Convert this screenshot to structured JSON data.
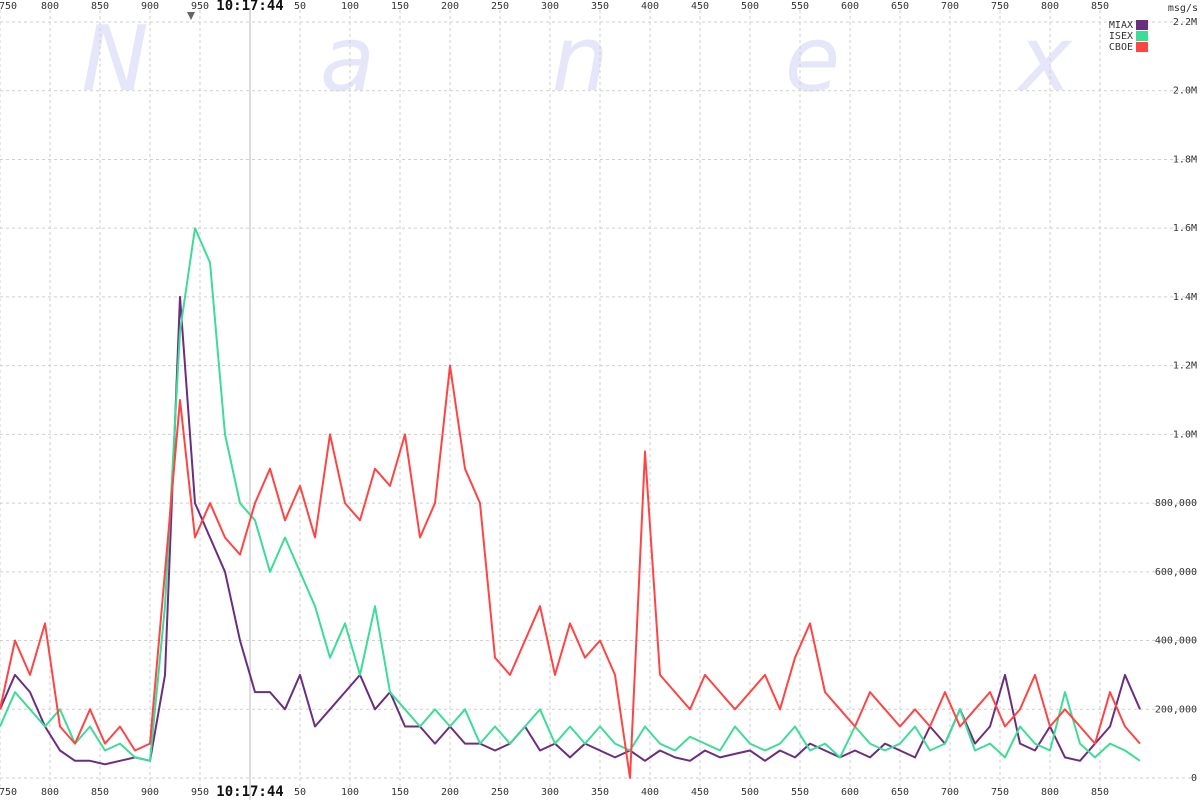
{
  "chart_data": {
    "type": "line",
    "watermark": [
      "N",
      "a",
      "n",
      "e",
      "x"
    ],
    "unit_label": "msg/s",
    "legend": "top-right",
    "grid": true,
    "xlim": [
      -250,
      950
    ],
    "xticks": [
      {
        "value": -250,
        "label": "750"
      },
      {
        "value": -200,
        "label": "800"
      },
      {
        "value": -150,
        "label": "850"
      },
      {
        "value": -100,
        "label": "900"
      },
      {
        "value": -50,
        "label": "950"
      },
      {
        "value": 0,
        "label": "10:17:44"
      },
      50,
      100,
      150,
      200,
      250,
      300,
      350,
      400,
      450,
      500,
      550,
      600,
      650,
      700,
      750,
      800,
      850
    ],
    "ylim": [
      0,
      2200000
    ],
    "yticks": [
      0,
      {
        "value": 200000,
        "label": "200,000"
      },
      {
        "value": 400000,
        "label": "400,000"
      },
      {
        "value": 600000,
        "label": "600,000"
      },
      {
        "value": 800000,
        "label": "800,000"
      },
      {
        "value": 1000000,
        "label": "1.0M"
      },
      {
        "value": 1200000,
        "label": "1.2M"
      },
      {
        "value": 1400000,
        "label": "1.4M"
      },
      {
        "value": 1600000,
        "label": "1.6M"
      },
      {
        "value": 1800000,
        "label": "1.8M"
      },
      {
        "value": 2000000,
        "label": "2.0M"
      },
      {
        "value": 2200000,
        "label": "2.2M"
      }
    ],
    "x": [
      -250,
      -235,
      -220,
      -205,
      -190,
      -175,
      -160,
      -145,
      -130,
      -115,
      -100,
      -85,
      -70,
      -55,
      -40,
      -25,
      -10,
      5,
      20,
      35,
      50,
      65,
      80,
      95,
      110,
      125,
      140,
      155,
      170,
      185,
      200,
      215,
      230,
      245,
      260,
      275,
      290,
      305,
      320,
      335,
      350,
      365,
      380,
      395,
      410,
      425,
      440,
      455,
      470,
      485,
      500,
      515,
      530,
      545,
      560,
      575,
      590,
      605,
      620,
      635,
      650,
      665,
      680,
      695,
      710,
      725,
      740,
      755,
      770,
      785,
      800,
      815,
      830,
      845,
      860,
      875,
      890
    ],
    "series": [
      {
        "name": "MIAX",
        "color": "#6b2d7e",
        "values": [
          200000,
          300000,
          250000,
          150000,
          80000,
          50000,
          50000,
          40000,
          50000,
          60000,
          50000,
          300000,
          1400000,
          800000,
          700000,
          600000,
          400000,
          250000,
          250000,
          200000,
          300000,
          150000,
          200000,
          250000,
          300000,
          200000,
          250000,
          150000,
          150000,
          100000,
          150000,
          100000,
          100000,
          80000,
          100000,
          150000,
          80000,
          100000,
          60000,
          100000,
          80000,
          60000,
          80000,
          50000,
          80000,
          60000,
          50000,
          80000,
          60000,
          70000,
          80000,
          50000,
          80000,
          60000,
          100000,
          80000,
          60000,
          80000,
          60000,
          100000,
          80000,
          60000,
          150000,
          100000,
          200000,
          100000,
          150000,
          300000,
          100000,
          80000,
          150000,
          60000,
          50000,
          100000,
          150000,
          300000,
          200000
        ]
      },
      {
        "name": "ISEX",
        "color": "#3ddc97",
        "values": [
          150000,
          250000,
          200000,
          150000,
          200000,
          100000,
          150000,
          80000,
          100000,
          60000,
          50000,
          500000,
          1300000,
          1600000,
          1500000,
          1000000,
          800000,
          750000,
          600000,
          700000,
          600000,
          500000,
          350000,
          450000,
          300000,
          500000,
          250000,
          200000,
          150000,
          200000,
          150000,
          200000,
          100000,
          150000,
          100000,
          150000,
          200000,
          100000,
          150000,
          100000,
          150000,
          100000,
          80000,
          150000,
          100000,
          80000,
          120000,
          100000,
          80000,
          150000,
          100000,
          80000,
          100000,
          150000,
          80000,
          100000,
          60000,
          150000,
          100000,
          80000,
          100000,
          150000,
          80000,
          100000,
          200000,
          80000,
          100000,
          60000,
          150000,
          100000,
          80000,
          250000,
          100000,
          60000,
          100000,
          80000,
          50000
        ]
      },
      {
        "name": "CBOE",
        "color": "#ff4444",
        "values": [
          200000,
          400000,
          300000,
          450000,
          150000,
          100000,
          200000,
          100000,
          150000,
          80000,
          100000,
          600000,
          1100000,
          700000,
          800000,
          700000,
          650000,
          800000,
          900000,
          750000,
          850000,
          700000,
          1000000,
          800000,
          750000,
          900000,
          850000,
          1000000,
          700000,
          800000,
          1200000,
          900000,
          800000,
          350000,
          300000,
          400000,
          500000,
          300000,
          450000,
          350000,
          400000,
          300000,
          0,
          950000,
          300000,
          250000,
          200000,
          300000,
          250000,
          200000,
          250000,
          300000,
          200000,
          350000,
          450000,
          250000,
          200000,
          150000,
          250000,
          200000,
          150000,
          200000,
          150000,
          250000,
          150000,
          200000,
          250000,
          150000,
          200000,
          300000,
          150000,
          200000,
          150000,
          100000,
          250000,
          150000,
          100000
        ]
      }
    ]
  }
}
